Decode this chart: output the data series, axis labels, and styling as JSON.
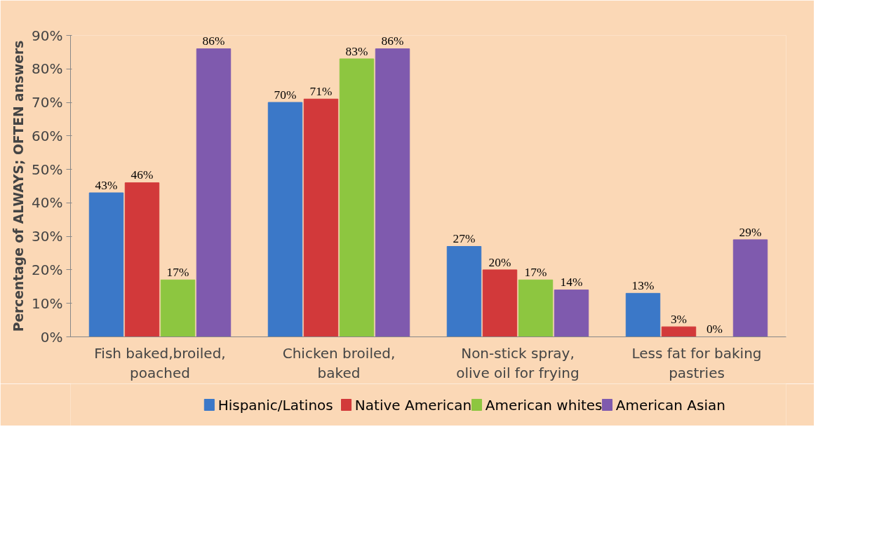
{
  "chart_data": {
    "type": "bar",
    "ylabel": "Percentage of ALWAYS; OFTEN answers",
    "categories": [
      "Fish baked,broiled, poached",
      "Chicken broiled, baked",
      "Non-stick spray, olive oil for frying",
      "Less fat for baking pastries"
    ],
    "series": [
      {
        "name": "Hispanic/Latinos",
        "color": "#3b78c8",
        "values": [
          43,
          70,
          27,
          13
        ],
        "value_labels": [
          "43%",
          "70%",
          "27%",
          "13%"
        ]
      },
      {
        "name": "Native American",
        "color": "#d2393a",
        "values": [
          46,
          71,
          20,
          3
        ],
        "value_labels": [
          "46%",
          "71%",
          "20%",
          "3%"
        ]
      },
      {
        "name": "American whites",
        "color": "#8dc640",
        "values": [
          17,
          83,
          17,
          0
        ],
        "value_labels": [
          "17%",
          "83%",
          "17%",
          "0%"
        ]
      },
      {
        "name": "American Asian",
        "color": "#7f5aae",
        "values": [
          86,
          86,
          14,
          29
        ],
        "value_labels": [
          "86%",
          "86%",
          "14%",
          "29%"
        ]
      }
    ],
    "ylim": [
      0,
      90
    ],
    "yticks": [
      {
        "value": 0,
        "label": "0%"
      },
      {
        "value": 10,
        "label": "10%"
      },
      {
        "value": 20,
        "label": "20%"
      },
      {
        "value": 30,
        "label": "30%"
      },
      {
        "value": 40,
        "label": "40%"
      },
      {
        "value": 50,
        "label": "50%"
      },
      {
        "value": 60,
        "label": "60%"
      },
      {
        "value": 70,
        "label": "70%"
      },
      {
        "value": 80,
        "label": "80%"
      },
      {
        "value": 90,
        "label": "90%"
      }
    ],
    "grid": false,
    "legend": "bottom"
  }
}
